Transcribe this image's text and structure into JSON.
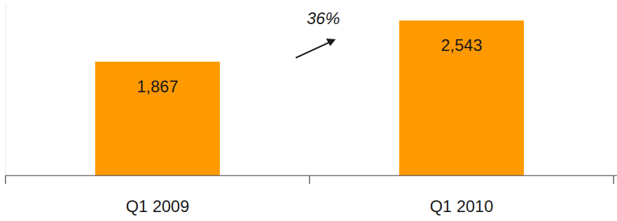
{
  "chart_data": {
    "type": "bar",
    "categories": [
      "Q1 2009",
      "Q1 2010"
    ],
    "values": [
      1867,
      2543
    ],
    "value_labels": [
      "1,867",
      "2,543"
    ],
    "color": "#ff9900",
    "ylim": [
      0,
      2800
    ],
    "data_labels": true,
    "tick_labels": "x",
    "grid": false,
    "annotation": "36%"
  }
}
